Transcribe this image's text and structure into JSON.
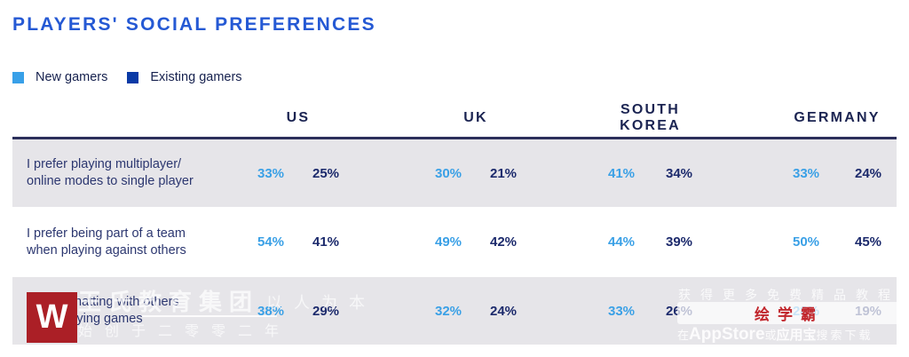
{
  "chart_data": {
    "type": "table",
    "title": "PLAYERS' SOCIAL PREFERENCES",
    "series_labels": [
      "New gamers",
      "Existing gamers"
    ],
    "columns": [
      "US",
      "UK",
      "SOUTH KOREA",
      "GERMANY"
    ],
    "unit": "%",
    "legend_position": "top-left",
    "row_striping": "alternate-gray",
    "rows": [
      {
        "statement": "I prefer playing multiplayer/online modes to single player",
        "values": [
          [
            33,
            25
          ],
          [
            30,
            21
          ],
          [
            41,
            34
          ],
          [
            33,
            24
          ]
        ]
      },
      {
        "statement": "I prefer being part of a team when playing against others",
        "values": [
          [
            54,
            41
          ],
          [
            49,
            42
          ],
          [
            44,
            39
          ],
          [
            50,
            45
          ]
        ]
      },
      {
        "statement": "I enjoy chatting with others while playing games",
        "values": [
          [
            38,
            29
          ],
          [
            32,
            24
          ],
          [
            33,
            26
          ],
          [
            28,
            19
          ]
        ]
      }
    ]
  },
  "row_labels": [
    [
      "I prefer playing multiplayer/",
      "online modes to single player"
    ],
    [
      "I prefer being part of a team",
      "when playing against others"
    ],
    [
      "I enjoy chatting with others",
      "while playing games"
    ]
  ],
  "colors": {
    "title_blue": "#2559D4",
    "new_gamers_blue": "#38A0E8",
    "existing_gamers_navy": "#1C2A6C",
    "header_navy": "#1B2452",
    "stripe_gray": "#E6E5E9",
    "watermark_red": "#AB1F26"
  },
  "watermarks": {
    "logo_letter": "W",
    "company_name": "王氏教育集团",
    "slogan": "以人为本",
    "founded": "始创于二零零二年",
    "promo": "获得更多免费精品教程",
    "app_name": "绘学霸",
    "download_prefix": "在",
    "download_appstore": "AppStore",
    "download_or": "或",
    "download_store": "应用宝",
    "download_suffix": "搜索下载"
  }
}
